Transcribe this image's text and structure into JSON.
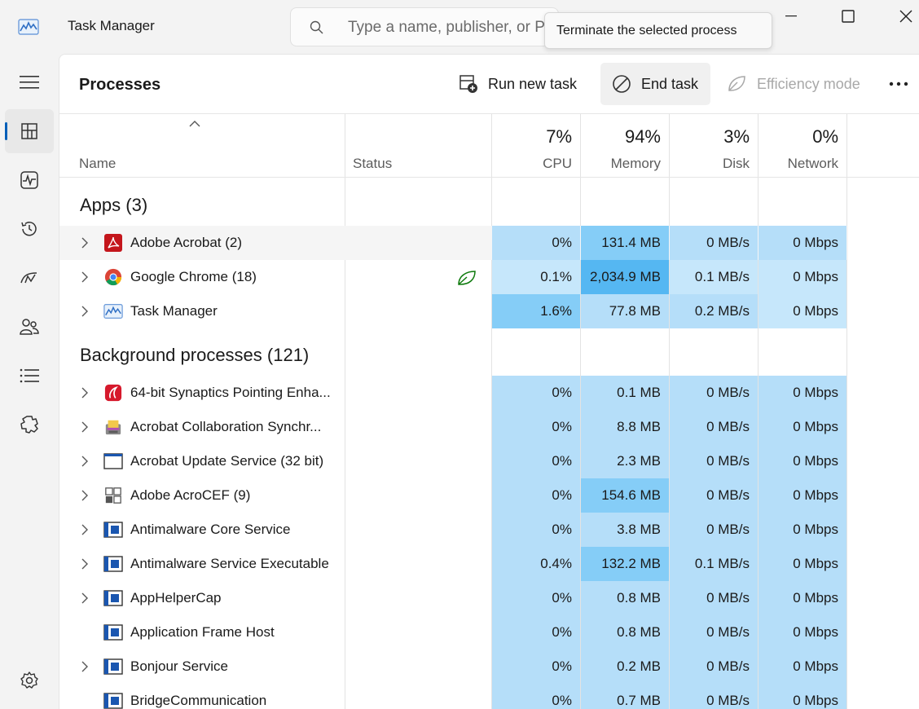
{
  "window": {
    "title": "Task Manager",
    "search_placeholder": "Type a name, publisher, or PID to search",
    "tooltip": "Terminate the selected process"
  },
  "nav": {
    "items": [
      "hamburger-icon",
      "processes-icon",
      "performance-icon",
      "app-history-icon",
      "startup-apps-icon",
      "users-icon",
      "details-icon",
      "services-icon",
      "settings-icon"
    ],
    "active": "processes"
  },
  "toolbar": {
    "page_title": "Processes",
    "run_new_task": "Run new task",
    "end_task": "End task",
    "efficiency_mode": "Efficiency mode",
    "more": "..."
  },
  "columns": {
    "name": "Name",
    "status": "Status",
    "cpu": {
      "label": "CPU",
      "total": "7%"
    },
    "memory": {
      "label": "Memory",
      "total": "94%"
    },
    "disk": {
      "label": "Disk",
      "total": "3%"
    },
    "network": {
      "label": "Network",
      "total": "0%"
    }
  },
  "groups": {
    "apps": "Apps (3)",
    "background": "Background processes (121)"
  },
  "apps": [
    {
      "name": "Adobe Acrobat (2)",
      "icon": "acrobat-icon",
      "cpu": "0%",
      "memory": "131.4 MB",
      "disk": "0 MB/s",
      "network": "0 Mbps",
      "expandable": true,
      "hover": true
    },
    {
      "name": "Google Chrome (18)",
      "icon": "chrome-icon",
      "status": "efficiency-leaf-icon",
      "cpu": "0.1%",
      "memory": "2,034.9 MB",
      "disk": "0.1 MB/s",
      "network": "0 Mbps",
      "expandable": true
    },
    {
      "name": "Task Manager",
      "icon": "task-manager-icon",
      "cpu": "1.6%",
      "memory": "77.8 MB",
      "disk": "0.2 MB/s",
      "network": "0 Mbps",
      "expandable": true
    }
  ],
  "background": [
    {
      "name": "64-bit Synaptics Pointing Enha...",
      "icon": "synaptics-icon",
      "cpu": "0%",
      "memory": "0.1 MB",
      "disk": "0 MB/s",
      "network": "0 Mbps",
      "expandable": true
    },
    {
      "name": "Acrobat Collaboration Synchr...",
      "icon": "collab-sync-icon",
      "cpu": "0%",
      "memory": "8.8 MB",
      "disk": "0 MB/s",
      "network": "0 Mbps",
      "expandable": true
    },
    {
      "name": "Acrobat Update Service (32 bit)",
      "icon": "window-icon",
      "cpu": "0%",
      "memory": "2.3 MB",
      "disk": "0 MB/s",
      "network": "0 Mbps",
      "expandable": true
    },
    {
      "name": "Adobe AcroCEF (9)",
      "icon": "acrocef-icon",
      "cpu": "0%",
      "memory": "154.6 MB",
      "disk": "0 MB/s",
      "network": "0 Mbps",
      "expandable": true
    },
    {
      "name": "Antimalware Core Service",
      "icon": "service-icon",
      "cpu": "0%",
      "memory": "3.8 MB",
      "disk": "0 MB/s",
      "network": "0 Mbps",
      "expandable": true
    },
    {
      "name": "Antimalware Service Executable",
      "icon": "service-icon",
      "cpu": "0.4%",
      "memory": "132.2 MB",
      "disk": "0.1 MB/s",
      "network": "0 Mbps",
      "expandable": true
    },
    {
      "name": "AppHelperCap",
      "icon": "service-icon",
      "cpu": "0%",
      "memory": "0.8 MB",
      "disk": "0 MB/s",
      "network": "0 Mbps",
      "expandable": true
    },
    {
      "name": "Application Frame Host",
      "icon": "service-icon",
      "cpu": "0%",
      "memory": "0.8 MB",
      "disk": "0 MB/s",
      "network": "0 Mbps",
      "expandable": false
    },
    {
      "name": "Bonjour Service",
      "icon": "service-icon",
      "cpu": "0%",
      "memory": "0.2 MB",
      "disk": "0 MB/s",
      "network": "0 Mbps",
      "expandable": true
    },
    {
      "name": "BridgeCommunication",
      "icon": "service-icon",
      "cpu": "0%",
      "memory": "0.7 MB",
      "disk": "0 MB/s",
      "network": "0 Mbps",
      "expandable": false
    }
  ],
  "heat_colors": {
    "light": "#c6e7fb",
    "base": "#b5def9",
    "medium": "#85cdf7",
    "high": "#55b7f2"
  },
  "accent": "#005fb8"
}
